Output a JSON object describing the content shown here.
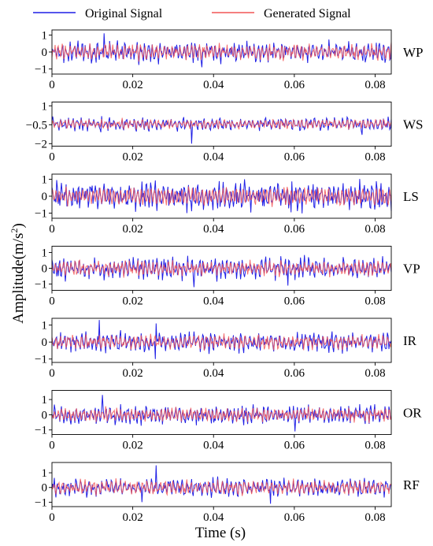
{
  "chart_data": {
    "type": "line",
    "legend": {
      "placement": "top",
      "entries": [
        {
          "label": "Original Signal",
          "color": "#1f1fe6"
        },
        {
          "label": "Generated Signal",
          "color": "#f25555"
        }
      ]
    },
    "xlabel": "Time (s)",
    "ylabel_main": "Amplitude(m/s",
    "ylabel_sup": "2",
    "ylabel_close": ")",
    "xlim": [
      0,
      0.084
    ],
    "xticks": [
      0,
      0.02,
      0.04,
      0.06,
      0.08
    ],
    "xtick_labels": [
      "0",
      "0.02",
      "0.04",
      "0.06",
      "0.08"
    ],
    "colors": {
      "original": "#1f1fe6",
      "generated": "#f25555",
      "overlap": "#b4146e"
    },
    "panels": [
      {
        "label": "WP",
        "ylim": [
          -1.3,
          1.3
        ],
        "yticks": [
          1,
          0,
          -1
        ],
        "ytick_labels": [
          "1",
          "0",
          "−1"
        ],
        "center": 0,
        "amp": 0.55,
        "match": 0.85,
        "spikes": [
          [
            0.0128,
            1.1
          ],
          [
            0.0372,
            -0.9
          ]
        ]
      },
      {
        "label": "WS",
        "ylim": [
          -2.2,
          1.3
        ],
        "yticks": [
          1,
          -0.5,
          -2
        ],
        "ytick_labels": [
          "1",
          "−0.5",
          "−2"
        ],
        "center": -0.45,
        "amp": 0.45,
        "match": 0.85,
        "spikes": [
          [
            0.0345,
            -2.0
          ],
          [
            0.0122,
            -1.1
          ],
          [
            0.0768,
            -1.3
          ]
        ]
      },
      {
        "label": "LS",
        "ylim": [
          -1.3,
          1.3
        ],
        "yticks": [
          1,
          0,
          -1
        ],
        "ytick_labels": [
          "1",
          "0",
          "−1"
        ],
        "center": 0,
        "amp": 0.75,
        "match": 0.15,
        "spikes": [
          [
            0.0335,
            -1.0
          ],
          [
            0.0592,
            -0.95
          ]
        ]
      },
      {
        "label": "VP",
        "ylim": [
          -1.4,
          1.4
        ],
        "yticks": [
          1,
          0,
          -1
        ],
        "ytick_labels": [
          "1",
          "0",
          "−1"
        ],
        "center": 0,
        "amp": 0.6,
        "match": 0.8,
        "spikes": [
          [
            0.0352,
            -1.2
          ],
          [
            0.0585,
            -1.1
          ]
        ]
      },
      {
        "label": "IR",
        "ylim": [
          -1.2,
          1.4
        ],
        "yticks": [
          1,
          0,
          -1
        ],
        "ytick_labels": [
          "1",
          "0",
          "−1"
        ],
        "center": 0,
        "amp": 0.5,
        "match": 0.85,
        "spikes": [
          [
            0.0118,
            1.3
          ],
          [
            0.0255,
            -1.0
          ],
          [
            0.0258,
            1.1
          ]
        ]
      },
      {
        "label": "OR",
        "ylim": [
          -1.3,
          1.6
        ],
        "yticks": [
          1,
          0,
          -1
        ],
        "ytick_labels": [
          "1",
          "0",
          "−1"
        ],
        "center": 0,
        "amp": 0.55,
        "match": 0.85,
        "spikes": [
          [
            0.0125,
            1.3
          ],
          [
            0.0602,
            -1.1
          ]
        ]
      },
      {
        "label": "RF",
        "ylim": [
          -1.3,
          1.7
        ],
        "yticks": [
          1,
          0,
          -1
        ],
        "ytick_labels": [
          "1",
          "0",
          "−1"
        ],
        "center": 0,
        "amp": 0.55,
        "match": 0.85,
        "spikes": [
          [
            0.0258,
            1.5
          ],
          [
            0.0222,
            -1.0
          ],
          [
            0.0542,
            -1.1
          ]
        ]
      }
    ]
  }
}
